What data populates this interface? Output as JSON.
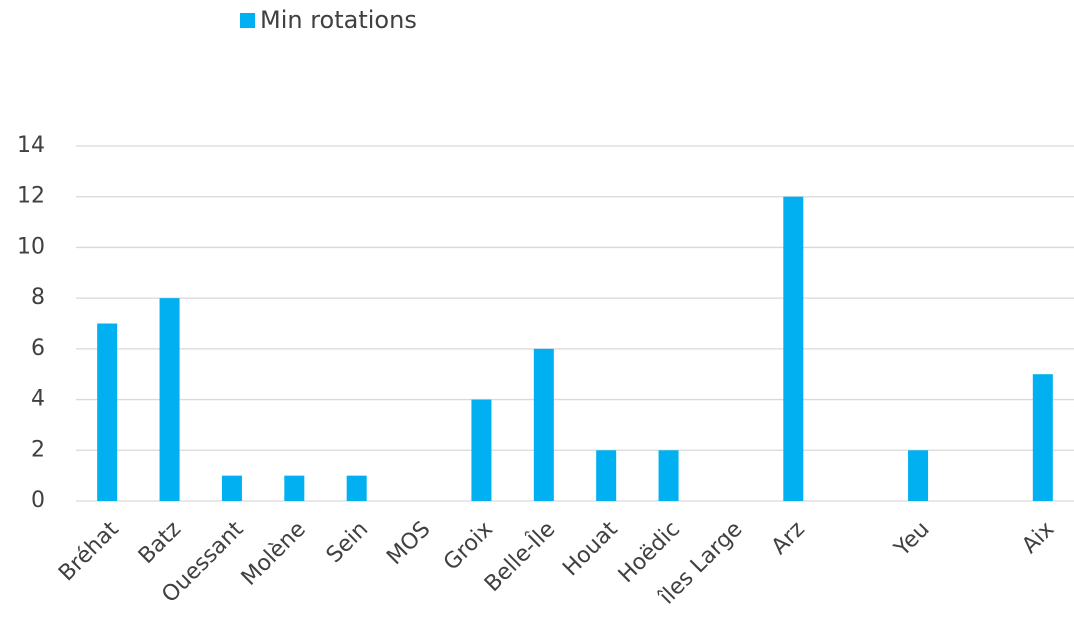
{
  "chart_data": {
    "type": "bar",
    "categories": [
      "Bréhat",
      "Batz",
      "Ouessant",
      "Molène",
      "Sein",
      "MOS",
      "Groix",
      "Belle-Île",
      "Houat",
      "Hoëdic",
      "îles Large",
      "Arz",
      null,
      "Yeu",
      null,
      "Aix"
    ],
    "series": [
      {
        "name": "Min rotations",
        "color": "#00b0f0",
        "values": [
          7,
          8,
          1,
          1,
          1,
          null,
          4,
          6,
          2,
          2,
          null,
          12,
          null,
          2,
          null,
          5
        ]
      }
    ],
    "ylim": [
      0,
      14
    ],
    "yticks": [
      0,
      2,
      4,
      6,
      8,
      10,
      12,
      14
    ],
    "grid": true,
    "legend": "top"
  }
}
